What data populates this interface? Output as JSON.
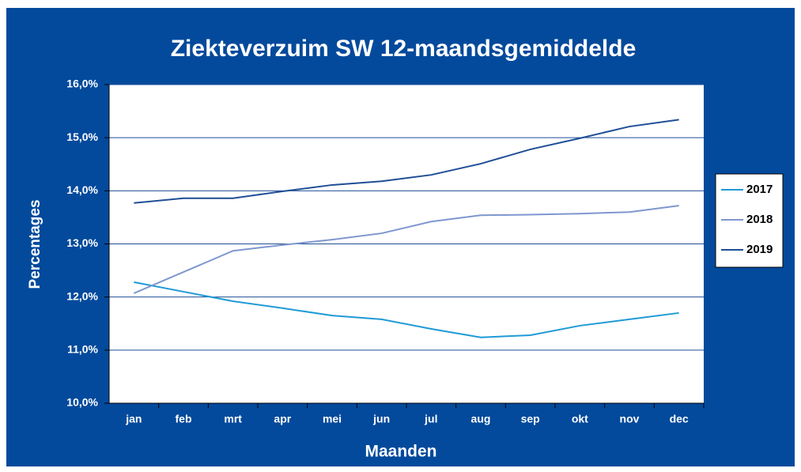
{
  "chart_data": {
    "type": "line",
    "title": "Ziekteverzuim SW 12-maandsgemiddelde",
    "x_label": "Maanden",
    "y_label": "Percentages",
    "categories": [
      "jan",
      "feb",
      "mrt",
      "apr",
      "mei",
      "jun",
      "jul",
      "aug",
      "sep",
      "okt",
      "nov",
      "dec"
    ],
    "series": [
      {
        "name": "2017",
        "color": "#1f9ad6",
        "values": [
          12.28,
          12.1,
          11.92,
          11.79,
          11.65,
          11.58,
          11.4,
          11.24,
          11.28,
          11.46,
          11.58,
          11.7
        ]
      },
      {
        "name": "2018",
        "color": "#7f97cf",
        "values": [
          12.07,
          12.47,
          12.87,
          12.98,
          13.08,
          13.2,
          13.42,
          13.54,
          13.55,
          13.57,
          13.6,
          13.72
        ]
      },
      {
        "name": "2019",
        "color": "#1f4e96",
        "values": [
          13.77,
          13.86,
          13.86,
          13.99,
          14.11,
          14.18,
          14.3,
          14.51,
          14.78,
          14.99,
          15.21,
          15.34
        ]
      }
    ],
    "ylim": [
      10,
      16
    ],
    "yticks": [
      {
        "value": 10,
        "label": "10,0%"
      },
      {
        "value": 11,
        "label": "11,0%"
      },
      {
        "value": 12,
        "label": "12,0%"
      },
      {
        "value": 13,
        "label": "13,0%"
      },
      {
        "value": 14,
        "label": "14,0%"
      },
      {
        "value": 15,
        "label": "15,0%"
      },
      {
        "value": 16,
        "label": "16,0%"
      }
    ],
    "grid": true,
    "legend": "right"
  }
}
